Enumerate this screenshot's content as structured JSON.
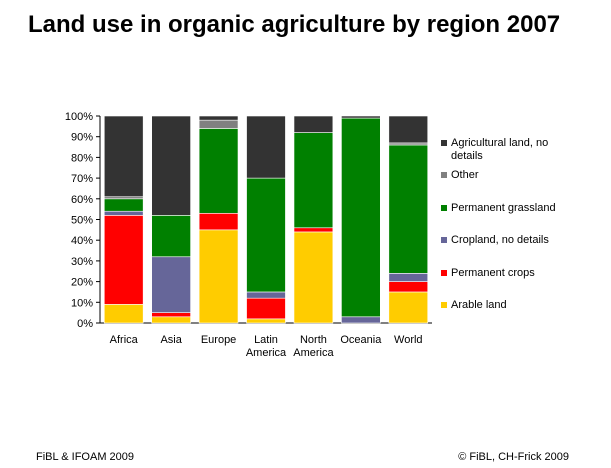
{
  "title": "Land use in organic agriculture by region 2007",
  "footer": {
    "left": "FiBL & IFOAM 2009",
    "right": "© FiBL, CH-Frick 2009"
  },
  "colors": {
    "Arable land": "#FFCC00",
    "Permanent crops": "#FF0000",
    "Cropland, no details": "#666699",
    "Permanent grassland": "#008000",
    "Other": "#808080",
    "Agricultural land, no details": "#333333"
  },
  "chart_data": {
    "type": "bar",
    "stacked": true,
    "title": "Land use in organic agriculture by region 2007",
    "xlabel": "",
    "ylabel": "",
    "ylim": [
      0,
      100
    ],
    "y_ticks": [
      "0%",
      "10%",
      "20%",
      "30%",
      "40%",
      "50%",
      "60%",
      "70%",
      "80%",
      "90%",
      "100%"
    ],
    "grid": false,
    "legend_position": "right",
    "categories": [
      [
        "Africa"
      ],
      [
        "Asia"
      ],
      [
        "Europe"
      ],
      [
        "Latin",
        "America"
      ],
      [
        "North",
        "America"
      ],
      [
        "Oceania"
      ],
      [
        "World"
      ]
    ],
    "series": [
      {
        "name": "Arable land",
        "values": [
          9,
          3,
          45,
          2,
          44,
          0,
          15
        ]
      },
      {
        "name": "Permanent crops",
        "values": [
          43,
          2,
          8,
          10,
          2,
          0,
          5
        ]
      },
      {
        "name": "Cropland, no details",
        "values": [
          2,
          27,
          0,
          3,
          0,
          3,
          4
        ]
      },
      {
        "name": "Permanent grassland",
        "values": [
          6,
          20,
          41,
          55,
          46,
          96,
          62
        ]
      },
      {
        "name": "Other",
        "values": [
          1,
          0,
          4,
          0,
          0,
          0,
          1
        ]
      },
      {
        "name": "Agricultural land, no details",
        "values": [
          39,
          48,
          2,
          30,
          8,
          1,
          13
        ]
      }
    ],
    "legend": [
      [
        "Agricultural land, no",
        "details"
      ],
      [
        "Other"
      ],
      [
        "Permanent grassland"
      ],
      [
        "Cropland, no details"
      ],
      [
        "Permanent crops"
      ],
      [
        "Arable land"
      ]
    ]
  }
}
